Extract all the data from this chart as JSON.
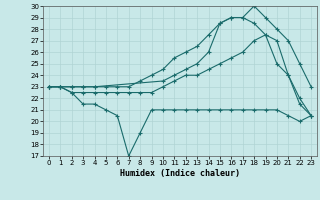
{
  "xlabel": "Humidex (Indice chaleur)",
  "bg_color": "#c8e8e8",
  "grid_color": "#b0d4d4",
  "line_color": "#1a6b6b",
  "xlim": [
    -0.5,
    23.5
  ],
  "ylim": [
    17,
    30
  ],
  "xticks": [
    0,
    1,
    2,
    3,
    4,
    5,
    6,
    7,
    8,
    9,
    10,
    11,
    12,
    13,
    14,
    15,
    16,
    17,
    18,
    19,
    20,
    21,
    22,
    23
  ],
  "yticks": [
    17,
    18,
    19,
    20,
    21,
    22,
    23,
    24,
    25,
    26,
    27,
    28,
    29,
    30
  ],
  "series": [
    {
      "x": [
        0,
        1,
        2,
        3,
        4,
        5,
        6,
        7,
        8,
        9,
        10,
        11,
        12,
        13,
        14,
        15,
        16,
        17,
        18,
        19,
        20,
        21,
        22,
        23
      ],
      "y": [
        23,
        23,
        22.5,
        21.5,
        21.5,
        21,
        20.5,
        17,
        19,
        21,
        21,
        21,
        21,
        21,
        21,
        21,
        21,
        21,
        21,
        21,
        21,
        20.5,
        20,
        20.5
      ]
    },
    {
      "x": [
        0,
        1,
        2,
        3,
        4,
        10,
        11,
        12,
        13,
        14,
        15,
        16,
        17,
        18,
        19,
        20,
        21,
        22,
        23
      ],
      "y": [
        23,
        23,
        23,
        23,
        23,
        23.5,
        24,
        24.5,
        25,
        26,
        28.5,
        29,
        29,
        30,
        29,
        28,
        27,
        25,
        23
      ]
    },
    {
      "x": [
        0,
        1,
        2,
        3,
        4,
        5,
        6,
        7,
        8,
        9,
        10,
        11,
        12,
        13,
        14,
        15,
        16,
        17,
        18,
        19,
        20,
        21,
        22,
        23
      ],
      "y": [
        23,
        23,
        23,
        23,
        23,
        23,
        23,
        23,
        23.5,
        24,
        24.5,
        25.5,
        26,
        26.5,
        27.5,
        28.5,
        29,
        29,
        28.5,
        27.5,
        27,
        24,
        22,
        20.5
      ]
    },
    {
      "x": [
        0,
        1,
        2,
        3,
        4,
        5,
        6,
        7,
        8,
        9,
        10,
        11,
        12,
        13,
        14,
        15,
        16,
        17,
        18,
        19,
        20,
        21,
        22,
        23
      ],
      "y": [
        23,
        23,
        22.5,
        22.5,
        22.5,
        22.5,
        22.5,
        22.5,
        22.5,
        22.5,
        23,
        23.5,
        24,
        24,
        24.5,
        25,
        25.5,
        26,
        27,
        27.5,
        25,
        24,
        21.5,
        20.5
      ]
    }
  ]
}
